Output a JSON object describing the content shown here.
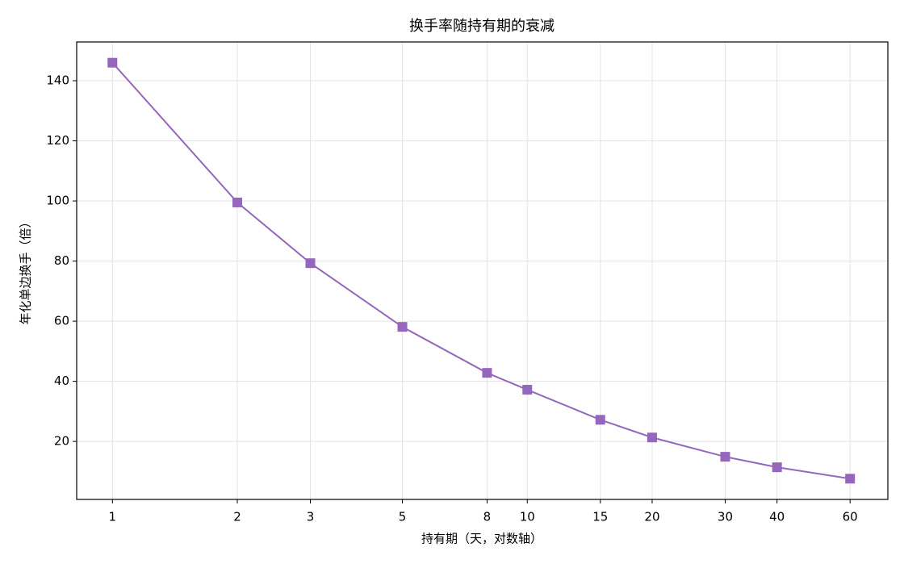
{
  "chart_data": {
    "type": "line",
    "title": "换手率随持有期的衰减",
    "x_label": "持有期（天，对数轴）",
    "y_label": "年化单边换手（倍）",
    "x": [
      1,
      2,
      3,
      5,
      8,
      10,
      15,
      20,
      30,
      40,
      60
    ],
    "series": [
      {
        "name": "年化单边换手",
        "color": "#9467bd",
        "values": [
          146,
          99.5,
          79.3,
          58.1,
          42.8,
          37.2,
          27.2,
          21.3,
          14.9,
          11.4,
          7.6
        ]
      }
    ],
    "x_log": true,
    "xlim": [
      0.82,
      74
    ],
    "xticks": [
      1,
      2,
      3,
      5,
      8,
      10,
      15,
      20,
      30,
      40,
      60
    ],
    "ylim": [
      0.7,
      152.9
    ],
    "yticks": [
      20,
      40,
      60,
      80,
      100,
      120,
      140
    ],
    "grid": true,
    "marker": "square"
  }
}
